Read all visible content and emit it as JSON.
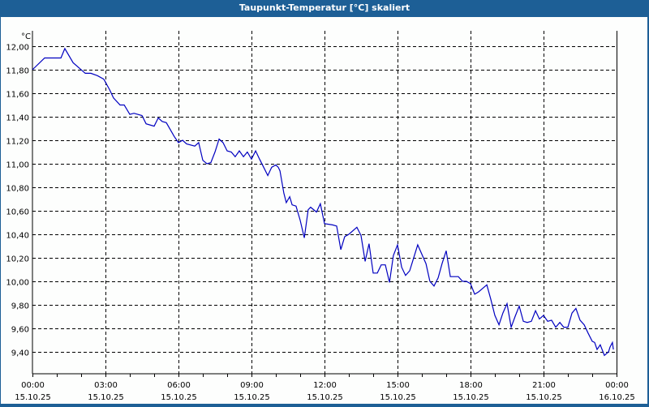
{
  "window": {
    "title": "Taupunkt-Temperatur [°C] skaliert"
  },
  "colors": {
    "title_bar": "#1d5f96",
    "line": "#0000c0",
    "background": "#fdfefd",
    "grid": "#000000"
  },
  "chart_data": {
    "type": "line",
    "title": "Taupunkt-Temperatur [°C] skaliert",
    "xlabel": "",
    "ylabel": "°C",
    "ylim": [
      9.23,
      12.05
    ],
    "y_ticks": [
      "12,00",
      "11,80",
      "11,60",
      "11,40",
      "11,20",
      "11,00",
      "10,80",
      "10,60",
      "10,40",
      "10,20",
      "10,00",
      "9,80",
      "9,60",
      "9,40"
    ],
    "x_ticks": [
      {
        "time": "00:00",
        "date": "15.10.25"
      },
      {
        "time": "03:00",
        "date": "15.10.25"
      },
      {
        "time": "06:00",
        "date": "15.10.25"
      },
      {
        "time": "09:00",
        "date": "15.10.25"
      },
      {
        "time": "12:00",
        "date": "15.10.25"
      },
      {
        "time": "15:00",
        "date": "15.10.25"
      },
      {
        "time": "18:00",
        "date": "15.10.25"
      },
      {
        "time": "21:00",
        "date": "15.10.25"
      },
      {
        "time": "00:00",
        "date": "16.10.25"
      }
    ],
    "grid": true,
    "legend": null,
    "series": [
      {
        "name": "Taupunkt-Temperatur",
        "x_hours": [
          0,
          0.5,
          1.17,
          1.33,
          1.67,
          2.17,
          2.4,
          2.67,
          2.93,
          3.17,
          3.33,
          3.6,
          3.77,
          4,
          4.17,
          4.5,
          4.67,
          5,
          5.17,
          5.33,
          5.5,
          5.83,
          6,
          6.17,
          6.33,
          6.67,
          6.83,
          7,
          7.17,
          7.33,
          7.5,
          7.67,
          7.83,
          8,
          8.17,
          8.33,
          8.5,
          8.67,
          8.83,
          9,
          9.17,
          9.33,
          9.5,
          9.67,
          9.83,
          10,
          10.1,
          10.17,
          10.33,
          10.43,
          10.57,
          10.67,
          10.83,
          11,
          11.17,
          11.33,
          11.43,
          11.67,
          11.83,
          12,
          12.33,
          12.5,
          12.67,
          12.83,
          13,
          13.33,
          13.5,
          13.67,
          13.83,
          14,
          14.17,
          14.33,
          14.5,
          14.67,
          14.83,
          15,
          15.17,
          15.33,
          15.5,
          15.83,
          16.17,
          16.33,
          16.5,
          16.67,
          16.83,
          17,
          17.17,
          17.5,
          17.67,
          17.83,
          18,
          18.17,
          18.33,
          18.5,
          18.67,
          18.83,
          19,
          19.17,
          19.33,
          19.5,
          19.67,
          19.83,
          20,
          20.17,
          20.33,
          20.5,
          20.67,
          20.83,
          21,
          21.17,
          21.33,
          21.5,
          21.67,
          21.83,
          22,
          22.17,
          22.33,
          22.5,
          22.67,
          22.83,
          23,
          23.1,
          23.2,
          23.33,
          23.5,
          23.67,
          23.73,
          23.83,
          23.87
        ],
        "values": [
          11.8,
          11.9,
          11.9,
          11.98,
          11.86,
          11.77,
          11.77,
          11.75,
          11.72,
          11.63,
          11.56,
          11.5,
          11.5,
          11.42,
          11.43,
          11.41,
          11.34,
          11.32,
          11.39,
          11.36,
          11.35,
          11.23,
          11.18,
          11.2,
          11.17,
          11.15,
          11.18,
          11.03,
          11.0,
          11.01,
          11.1,
          11.21,
          11.18,
          11.11,
          11.1,
          11.06,
          11.11,
          11.06,
          11.1,
          11.04,
          11.11,
          11.04,
          10.97,
          10.9,
          10.97,
          10.99,
          10.97,
          10.94,
          10.75,
          10.67,
          10.72,
          10.65,
          10.64,
          10.52,
          10.37,
          10.61,
          10.63,
          10.59,
          10.66,
          10.49,
          10.48,
          10.47,
          10.27,
          10.38,
          10.4,
          10.46,
          10.39,
          10.17,
          10.32,
          10.07,
          10.07,
          10.14,
          10.14,
          9.99,
          10.22,
          10.31,
          10.12,
          10.05,
          10.09,
          10.31,
          10.15,
          10.0,
          9.96,
          10.03,
          10.15,
          10.26,
          10.04,
          10.04,
          10.0,
          10.0,
          9.98,
          9.89,
          9.91,
          9.94,
          9.97,
          9.85,
          9.71,
          9.63,
          9.73,
          9.81,
          9.61,
          9.7,
          9.79,
          9.66,
          9.65,
          9.66,
          9.75,
          9.68,
          9.71,
          9.66,
          9.67,
          9.61,
          9.65,
          9.61,
          9.61,
          9.73,
          9.77,
          9.67,
          9.63,
          9.56,
          9.49,
          9.48,
          9.42,
          9.46,
          9.37,
          9.4,
          9.44,
          9.48,
          9.42,
          9.41
        ]
      }
    ]
  }
}
